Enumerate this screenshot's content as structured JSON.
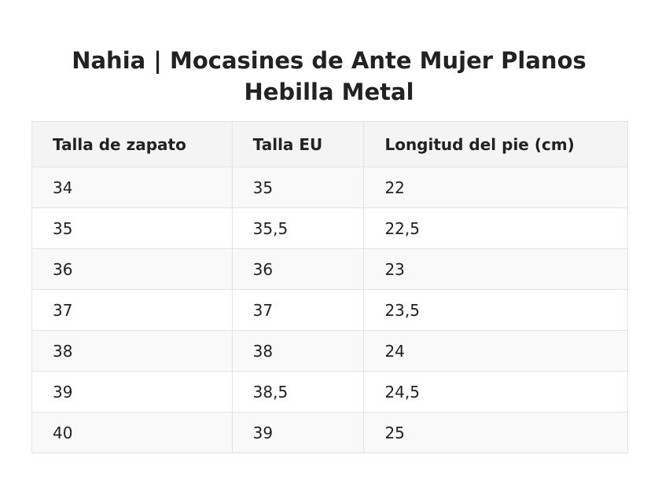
{
  "title": {
    "line1": "Nahia | Mocasines de Ante Mujer Planos",
    "line2": "Hebilla Metal"
  },
  "table": {
    "headers": [
      "Talla de zapato",
      "Talla EU",
      "Longitud del pie (cm)"
    ],
    "rows": [
      [
        "34",
        "35",
        "22"
      ],
      [
        "35",
        "35,5",
        "22,5"
      ],
      [
        "36",
        "36",
        "23"
      ],
      [
        "37",
        "37",
        "23,5"
      ],
      [
        "38",
        "38",
        "24"
      ],
      [
        "39",
        "38,5",
        "24,5"
      ],
      [
        "40",
        "39",
        "25"
      ]
    ]
  }
}
